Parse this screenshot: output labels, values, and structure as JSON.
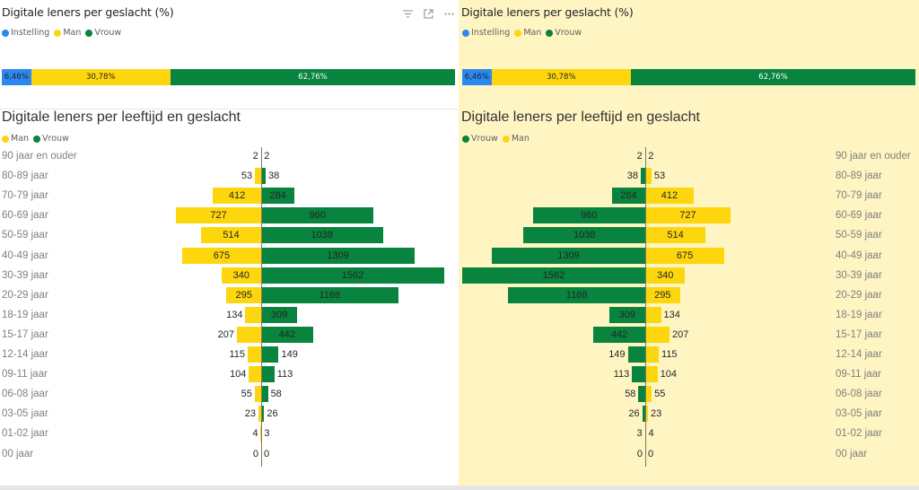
{
  "colors": {
    "instelling": "#2b88f0",
    "man": "#fdd60e",
    "vrouw": "#08843f",
    "right_background": "#fff5c3"
  },
  "header_icons": [
    "filter-icon",
    "focus-mode-icon",
    "more-options-icon"
  ],
  "left": {
    "stacked": {
      "title": "Digitale leners per geslacht (%)",
      "legend": [
        {
          "key": "instelling",
          "label": "Instelling"
        },
        {
          "key": "man",
          "label": "Man"
        },
        {
          "key": "vrouw",
          "label": "Vrouw"
        }
      ],
      "segments": [
        {
          "key": "instelling",
          "value": 6.46,
          "label": "6,46%"
        },
        {
          "key": "man",
          "value": 30.78,
          "label": "30,78%"
        },
        {
          "key": "vrouw",
          "value": 62.76,
          "label": "62,76%"
        }
      ]
    },
    "pyramid": {
      "title": "Digitale leners per leeftijd en geslacht",
      "legend": [
        {
          "key": "man",
          "label": "Man"
        },
        {
          "key": "vrouw",
          "label": "Vrouw"
        }
      ]
    }
  },
  "right": {
    "stacked": {
      "title": "Digitale leners per geslacht (%)",
      "legend": [
        {
          "key": "instelling",
          "label": "Instelling"
        },
        {
          "key": "man",
          "label": "Man"
        },
        {
          "key": "vrouw",
          "label": "Vrouw"
        }
      ],
      "segments": [
        {
          "key": "instelling",
          "value": 6.46,
          "label": "6,46%"
        },
        {
          "key": "man",
          "value": 30.78,
          "label": "30,78%"
        },
        {
          "key": "vrouw",
          "value": 62.76,
          "label": "62,76%"
        }
      ]
    },
    "pyramid": {
      "title": "Digitale leners per leeftijd en geslacht",
      "legend": [
        {
          "key": "vrouw",
          "label": "Vrouw"
        },
        {
          "key": "man",
          "label": "Man"
        }
      ]
    }
  },
  "chart_data": [
    {
      "type": "bar",
      "subtype": "100% stacked horizontal bar",
      "title": "Digitale leners per geslacht (%)",
      "series": [
        {
          "name": "Instelling",
          "values": [
            6.46
          ]
        },
        {
          "name": "Man",
          "values": [
            30.78
          ]
        },
        {
          "name": "Vrouw",
          "values": [
            62.76
          ]
        }
      ],
      "unit": "%",
      "legend": "top-left"
    },
    {
      "type": "bar",
      "subtype": "population pyramid",
      "title": "Digitale leners per leeftijd en geslacht",
      "categories": [
        "90 jaar en ouder",
        "80-89 jaar",
        "70-79 jaar",
        "60-69 jaar",
        "50-59 jaar",
        "40-49 jaar",
        "30-39 jaar",
        "20-29 jaar",
        "18-19 jaar",
        "15-17 jaar",
        "12-14 jaar",
        "09-11 jaar",
        "06-08 jaar",
        "03-05 jaar",
        "01-02 jaar",
        "00 jaar"
      ],
      "series": [
        {
          "name": "Man",
          "values": [
            2,
            53,
            412,
            727,
            514,
            675,
            340,
            295,
            134,
            207,
            115,
            104,
            55,
            23,
            4,
            0
          ]
        },
        {
          "name": "Vrouw",
          "values": [
            2,
            38,
            284,
            960,
            1038,
            1309,
            1562,
            1168,
            309,
            442,
            149,
            113,
            58,
            26,
            3,
            0
          ]
        }
      ],
      "xlim": [
        0,
        1562
      ],
      "legend": "top-left",
      "grid": false
    }
  ]
}
